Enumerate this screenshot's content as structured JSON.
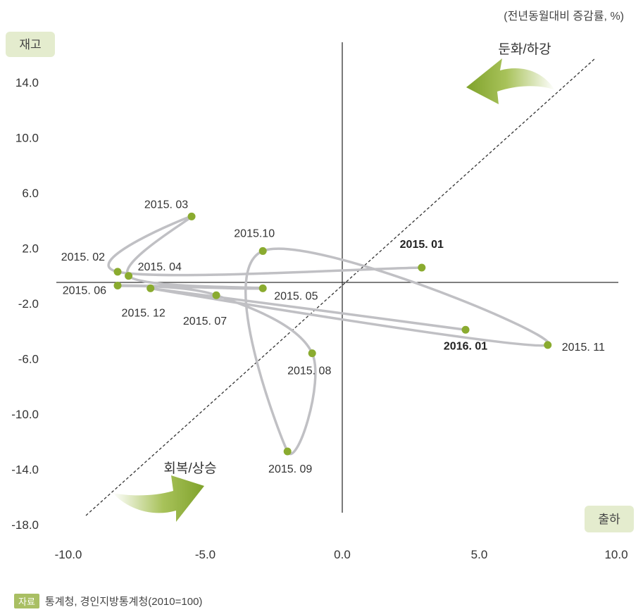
{
  "unit_note": "(전년동월대비 증감률, %)",
  "y_badge": "재고",
  "x_badge": "출하",
  "arrow_up_label": "둔화/하강",
  "arrow_down_label": "회복/상승",
  "source": {
    "tag": "자료",
    "text": "통계청, 경인지방통계청(2010=100)"
  },
  "colors": {
    "point": "#8aab2f",
    "path": "#c0c0c4",
    "arrow": "#8aab2f",
    "badge": "#e4ecce",
    "axis": "#333333"
  },
  "chart_data": {
    "type": "scatter",
    "xlim": [
      -10,
      10
    ],
    "ylim": [
      -18,
      14
    ],
    "xticks": [
      "-10.0",
      "-5.0",
      "0.0",
      "5.0",
      "10.0"
    ],
    "yticks": [
      "14.0",
      "10.0",
      "6.0",
      "2.0",
      "-2.0",
      "-6.0",
      "-10.0",
      "-14.0",
      "-18.0"
    ],
    "xtick_values": [
      -10,
      -5,
      0,
      5,
      10
    ],
    "ytick_values": [
      14,
      10,
      6,
      2,
      -2,
      -6,
      -10,
      -14,
      -18
    ],
    "points": [
      {
        "label": "2015. 01",
        "x": 2.9,
        "y": 0.6,
        "bold": true
      },
      {
        "label": "2015. 02",
        "x": -8.2,
        "y": 0.3
      },
      {
        "label": "2015. 03",
        "x": -5.5,
        "y": 4.3
      },
      {
        "label": "2015. 04",
        "x": -7.8,
        "y": 0.0
      },
      {
        "label": "2015. 05",
        "x": -2.9,
        "y": -0.9
      },
      {
        "label": "2015. 06",
        "x": -8.2,
        "y": -0.7
      },
      {
        "label": "2015. 07",
        "x": -4.6,
        "y": -1.4
      },
      {
        "label": "2015. 08",
        "x": -1.1,
        "y": -5.6
      },
      {
        "label": "2015. 09",
        "x": -2.0,
        "y": -12.7
      },
      {
        "label": "2015.10",
        "x": -2.9,
        "y": 1.8
      },
      {
        "label": "2015. 11",
        "x": 7.5,
        "y": -5.0
      },
      {
        "label": "2015. 12",
        "x": -7.0,
        "y": -0.9
      },
      {
        "label": "2016. 01",
        "x": 4.5,
        "y": -3.9,
        "bold": true
      }
    ]
  }
}
